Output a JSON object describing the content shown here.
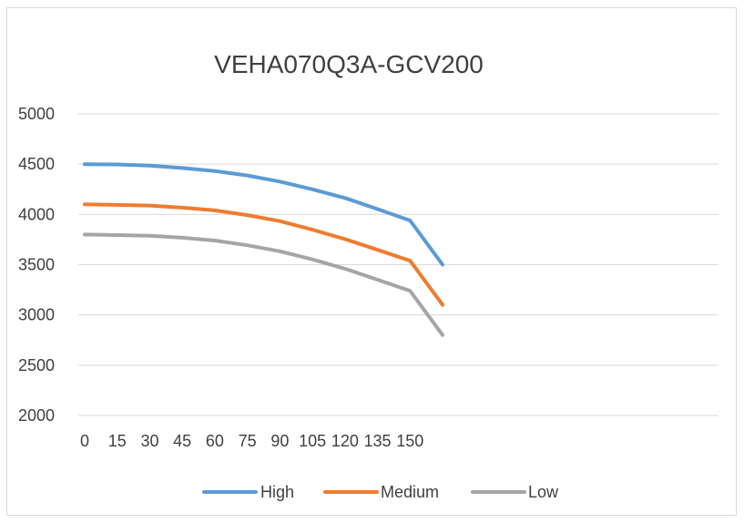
{
  "chart_data": {
    "type": "line",
    "title": "VEHA070Q3A-GCV200",
    "xlabel": "",
    "ylabel": "",
    "x": [
      0,
      15,
      30,
      45,
      60,
      75,
      90,
      105,
      120,
      135,
      150,
      165
    ],
    "x_tick_labels": [
      "0",
      "15",
      "30",
      "45",
      "60",
      "75",
      "90",
      "105",
      "120",
      "135",
      "150",
      ""
    ],
    "ylim": [
      2000,
      5000
    ],
    "y_ticks": [
      2000,
      2500,
      3000,
      3500,
      4000,
      4500,
      5000
    ],
    "grid": true,
    "legend_position": "bottom",
    "series": [
      {
        "name": "High",
        "color": "#5B9BD5",
        "values": [
          4500,
          4497,
          4485,
          4462,
          4432,
          4387,
          4327,
          4250,
          4163,
          4053,
          3940,
          3500
        ]
      },
      {
        "name": "Medium",
        "color": "#ED7D31",
        "values": [
          4100,
          4095,
          4088,
          4067,
          4040,
          3993,
          3933,
          3848,
          3755,
          3648,
          3540,
          3100
        ]
      },
      {
        "name": "Low",
        "color": "#A5A5A5",
        "values": [
          3800,
          3795,
          3788,
          3768,
          3740,
          3693,
          3633,
          3553,
          3460,
          3350,
          3240,
          2800
        ]
      }
    ]
  }
}
